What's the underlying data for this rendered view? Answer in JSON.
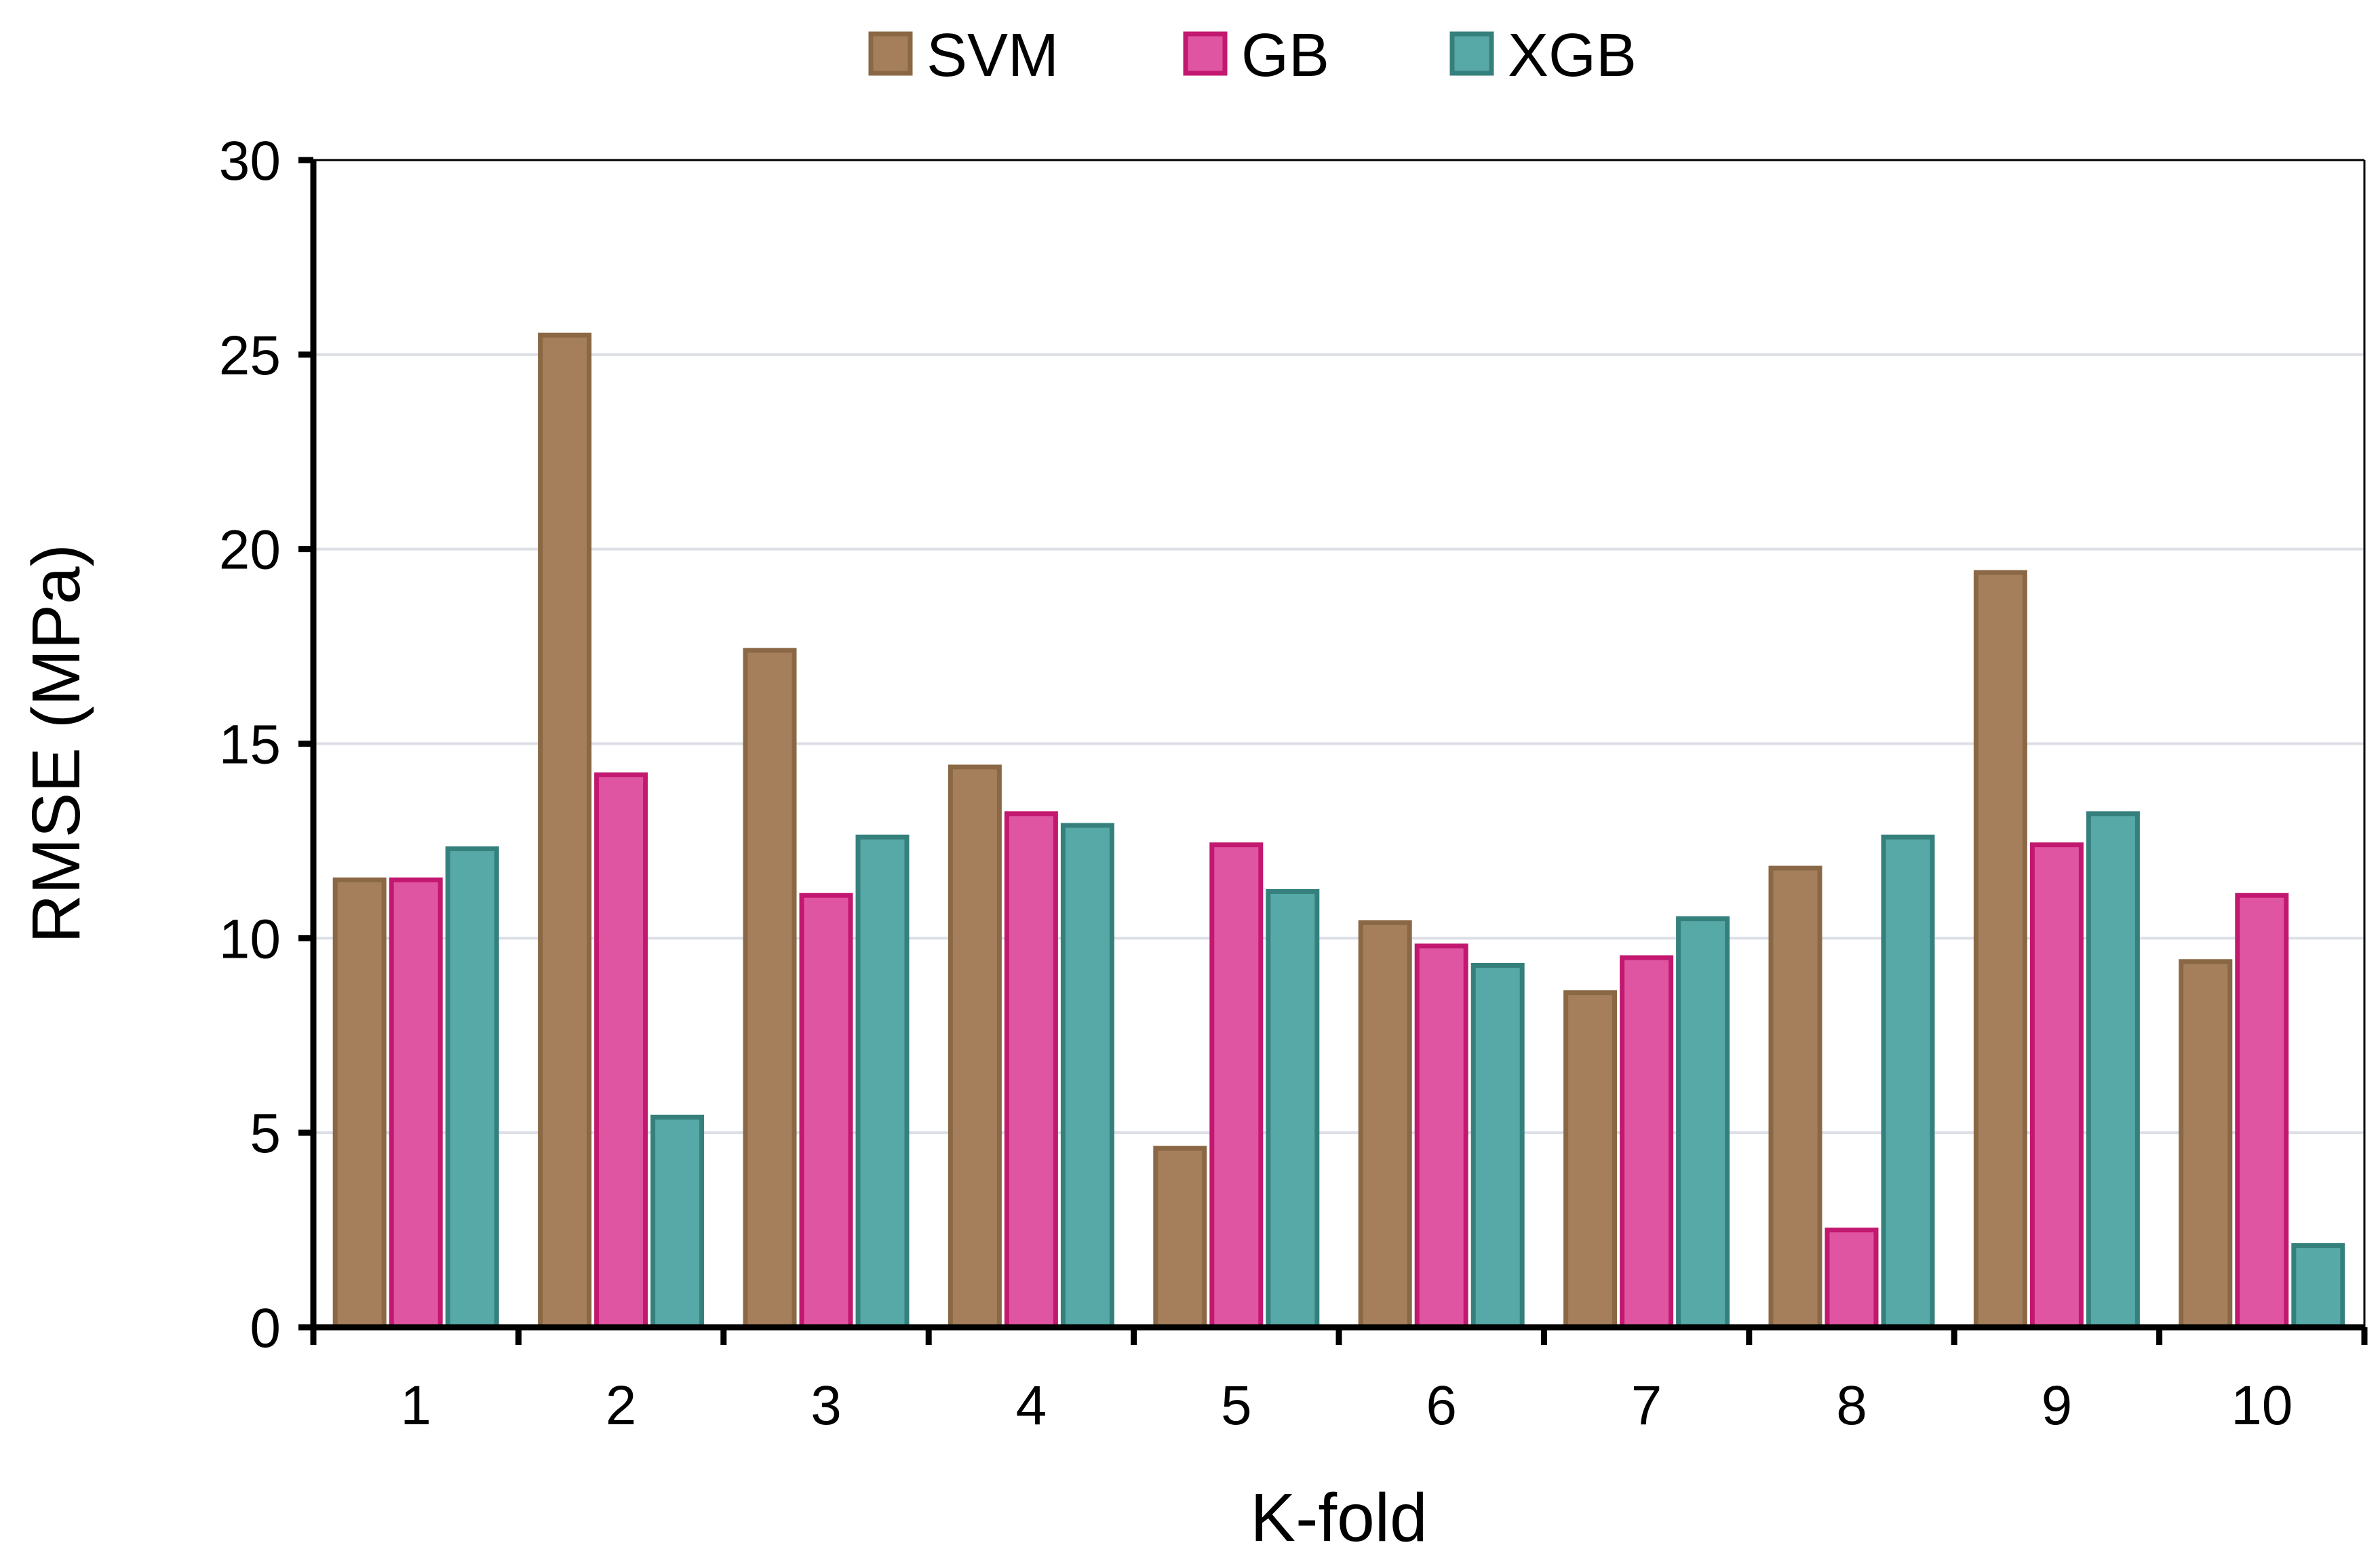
{
  "chart_data": {
    "type": "bar",
    "title": "",
    "xlabel": "K-fold",
    "ylabel": "RMSE (MPa)",
    "ylim": [
      0,
      30
    ],
    "yticks": [
      0,
      5,
      10,
      15,
      20,
      25,
      30
    ],
    "grid": true,
    "legend_position": "top-center",
    "categories": [
      "1",
      "2",
      "3",
      "4",
      "5",
      "6",
      "7",
      "8",
      "9",
      "10"
    ],
    "series": [
      {
        "name": "SVM",
        "fill": "#a57f5c",
        "stroke": "#8a6845",
        "values": [
          11.5,
          25.5,
          17.4,
          14.4,
          4.6,
          10.4,
          8.6,
          11.8,
          19.4,
          9.4
        ]
      },
      {
        "name": "GB",
        "fill": "#e055a1",
        "stroke": "#c2186f",
        "values": [
          11.5,
          14.2,
          11.1,
          13.2,
          12.4,
          9.8,
          9.5,
          2.5,
          12.4,
          11.1
        ]
      },
      {
        "name": "XGB",
        "fill": "#56a9a6",
        "stroke": "#35807c",
        "values": [
          12.3,
          5.4,
          12.6,
          12.9,
          11.2,
          9.3,
          10.5,
          12.6,
          13.2,
          2.1
        ]
      }
    ]
  }
}
